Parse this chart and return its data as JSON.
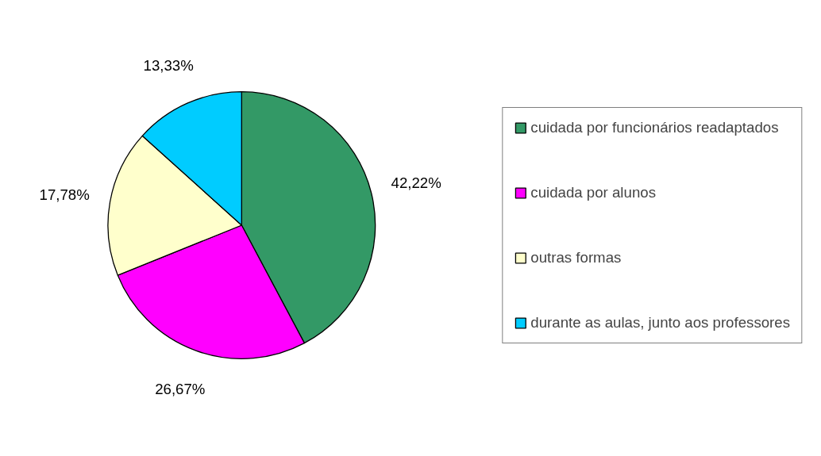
{
  "chart_data": {
    "type": "pie",
    "categories": [
      "cuidada por funcionários readaptados",
      "cuidada por alunos",
      "outras formas",
      "durante as aulas, junto aos professores"
    ],
    "values": [
      42.22,
      26.67,
      17.78,
      13.33
    ],
    "colors": [
      "#339966",
      "#ff00ff",
      "#ffffcc",
      "#00ccff"
    ],
    "value_labels": [
      "42,22%",
      "26,67%",
      "17,78%",
      "13,33%"
    ],
    "legend": "right"
  }
}
